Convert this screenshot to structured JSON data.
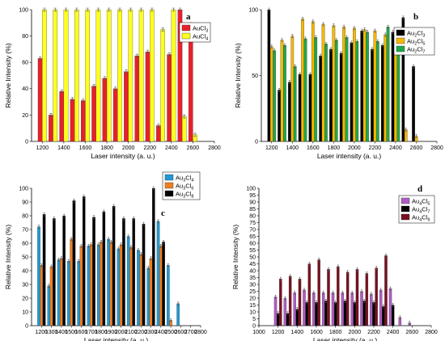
{
  "chart_data": [
    {
      "type": "bar",
      "panel_label": "a",
      "xlabel": "Laser intensity (a. u.)",
      "ylabel": "Relative Intensity (%)",
      "xlim": [
        1100,
        2800
      ],
      "ylim": [
        0,
        100
      ],
      "xticks": [
        1200,
        1400,
        1600,
        1800,
        2000,
        2200,
        2400,
        2600,
        2800
      ],
      "yticks": [
        0,
        20,
        40,
        60,
        80,
        100
      ],
      "legend_position": "top-right",
      "x": [
        1200,
        1300,
        1400,
        1500,
        1600,
        1700,
        1800,
        1900,
        2000,
        2100,
        2200,
        2300,
        2400,
        2500,
        2600
      ],
      "series": [
        {
          "name": "AuCl3",
          "name_main": "AuCl",
          "name_sub": "3",
          "color": "#e8202a",
          "values": [
            63,
            20,
            38,
            32,
            31,
            42,
            48,
            40,
            53,
            65,
            68,
            12,
            66,
            100,
            89
          ]
        },
        {
          "name": "AuCl4",
          "name_main": "AuCl",
          "name_sub": "4",
          "color": "#ffff1f",
          "values": [
            100,
            100,
            100,
            100,
            100,
            100,
            100,
            100,
            100,
            100,
            100,
            85,
            100,
            19,
            5
          ]
        }
      ]
    },
    {
      "type": "bar",
      "panel_label": "b",
      "xlabel": "Laser intensity (a. u.)",
      "ylabel": "Relative Intensity (%)",
      "xlim": [
        1100,
        2800
      ],
      "ylim": [
        0,
        100
      ],
      "xticks": [
        1200,
        1400,
        1600,
        1800,
        2000,
        2200,
        2400,
        2600,
        2800
      ],
      "yticks": [
        0,
        50,
        100
      ],
      "legend_position": "top-right",
      "x": [
        1200,
        1300,
        1400,
        1500,
        1600,
        1700,
        1800,
        1900,
        2000,
        2100,
        2200,
        2300,
        2400,
        2500,
        2600
      ],
      "series": [
        {
          "name": "Au2Cl3",
          "name_main": "Au",
          "name_sub": "2",
          "name_tail": "Cl",
          "name_sub2": "3",
          "color": "#000000",
          "values": [
            100,
            39,
            45,
            51,
            51,
            65,
            70,
            67,
            75,
            84,
            70,
            73,
            83,
            94,
            57
          ]
        },
        {
          "name": "Au2Cl5",
          "name_main": "Au",
          "name_sub": "2",
          "name_tail": "Cl",
          "name_sub2": "5",
          "color": "#f5b800",
          "values": [
            72,
            77,
            80,
            93,
            91,
            89,
            88,
            87,
            86,
            85,
            84,
            81,
            71,
            9,
            4
          ]
        },
        {
          "name": "Au2Cl7",
          "name_main": "Au",
          "name_sub": "2",
          "name_tail": "Cl",
          "name_sub2": "7",
          "color": "#1fa84a",
          "values": [
            69,
            73,
            57,
            78,
            79,
            74,
            77,
            79,
            76,
            83,
            76,
            87,
            85,
            0,
            0
          ]
        }
      ]
    },
    {
      "type": "bar",
      "panel_label": "c",
      "xlabel": "Laser intensity (a. u.)",
      "ylabel": "Relative Intensity (%)",
      "xlim": [
        1100,
        2800
      ],
      "ylim": [
        0,
        100
      ],
      "xticks": [
        1200,
        1300,
        1400,
        1500,
        1600,
        1700,
        1800,
        1900,
        2000,
        2100,
        2200,
        2300,
        2400,
        2500,
        2600,
        2700,
        2800
      ],
      "yticks": [
        0,
        10,
        20,
        30,
        40,
        50,
        60,
        70,
        80,
        90,
        100
      ],
      "legend_position": "top-right",
      "x": [
        1200,
        1300,
        1400,
        1500,
        1600,
        1700,
        1800,
        1900,
        2000,
        2100,
        2200,
        2300,
        2400,
        2500,
        2600
      ],
      "series": [
        {
          "name": "Au3Cl4",
          "name_main": "Au",
          "name_sub": "3",
          "name_tail": "Cl",
          "name_sub2": "4",
          "color": "#1f9ad6",
          "values": [
            72,
            29,
            48,
            47,
            47,
            58,
            59,
            63,
            56,
            65,
            55,
            42,
            76,
            44,
            16
          ]
        },
        {
          "name": "Au3Cl6",
          "name_main": "Au",
          "name_sub": "3",
          "name_tail": "Cl",
          "name_sub2": "6",
          "color": "#f07f1f",
          "values": [
            44,
            43,
            49,
            63,
            58,
            59,
            61,
            61,
            59,
            57,
            52,
            49,
            58,
            4,
            0
          ]
        },
        {
          "name": "Au3Cl8",
          "name_main": "Au",
          "name_sub": "3",
          "name_tail": "Cl",
          "name_sub2": "8",
          "color": "#000000",
          "values": [
            81,
            78,
            80,
            91,
            94,
            79,
            83,
            87,
            78,
            78,
            74,
            100,
            61,
            0,
            0
          ]
        }
      ]
    },
    {
      "type": "bar",
      "panel_label": "d",
      "xlabel": "Laser intensity (a. u.)",
      "ylabel": "Relative Intensity (%)",
      "xlim": [
        1000,
        2800
      ],
      "ylim": [
        0,
        100
      ],
      "xticks": [
        1000,
        1200,
        1400,
        1600,
        1800,
        2000,
        2200,
        2400,
        2600,
        2800
      ],
      "yticks": [
        0,
        5,
        10,
        15,
        20,
        25,
        30,
        35,
        40,
        45,
        50,
        55,
        60,
        65,
        70,
        75,
        80,
        85,
        90,
        95,
        100
      ],
      "legend_position": "top-right",
      "x": [
        1200,
        1300,
        1400,
        1500,
        1600,
        1700,
        1800,
        1900,
        2000,
        2100,
        2200,
        2300,
        2400,
        2500,
        2600
      ],
      "series": [
        {
          "name": "Au4Cl5",
          "name_main": "Au",
          "name_sub": "4",
          "name_tail": "Cl",
          "name_sub2": "5",
          "color": "#b05cc4",
          "values": [
            21,
            20,
            24,
            26,
            24,
            24,
            24,
            24,
            24,
            25,
            23,
            26,
            27,
            6,
            2
          ]
        },
        {
          "name": "Au4Cl7",
          "name_main": "Au",
          "name_sub": "4",
          "name_tail": "Cl",
          "name_sub2": "7",
          "color": "#000000",
          "values": [
            9,
            9,
            12,
            17,
            17,
            18,
            17,
            18,
            17,
            18,
            17,
            14,
            15,
            0,
            0
          ]
        },
        {
          "name": "Au4Cl9",
          "name_main": "Au",
          "name_sub": "4",
          "name_tail": "Cl",
          "name_sub2": "9",
          "color": "#7a0f1e",
          "values": [
            34,
            36,
            34,
            45,
            48,
            41,
            43,
            39,
            41,
            38,
            42,
            51,
            0,
            0,
            0
          ]
        }
      ]
    }
  ]
}
